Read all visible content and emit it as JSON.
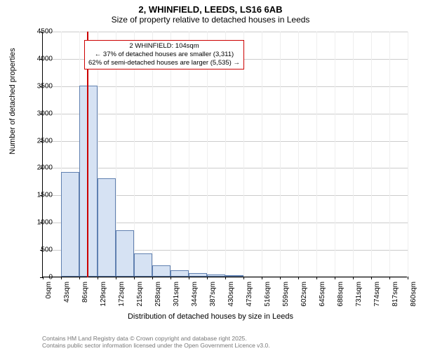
{
  "title": "2, WHINFIELD, LEEDS, LS16 6AB",
  "subtitle": "Size of property relative to detached houses in Leeds",
  "ylabel": "Number of detached properties",
  "xlabel": "Distribution of detached houses by size in Leeds",
  "footer_line1": "Contains HM Land Registry data © Crown copyright and database right 2025.",
  "footer_line2": "Contains public sector information licensed under the Open Government Licence v3.0.",
  "annotation": {
    "line1": "2 WHINFIELD: 104sqm",
    "line2": "← 37% of detached houses are smaller (3,311)",
    "line3": "62% of semi-detached houses are larger (5,535) →"
  },
  "chart": {
    "type": "histogram",
    "ymax": 4500,
    "ytick_step": 500,
    "yticks": [
      0,
      500,
      1000,
      1500,
      2000,
      2500,
      3000,
      3500,
      4000,
      4500
    ],
    "xticks": [
      "0sqm",
      "43sqm",
      "86sqm",
      "129sqm",
      "172sqm",
      "215sqm",
      "258sqm",
      "301sqm",
      "344sqm",
      "387sqm",
      "430sqm",
      "473sqm",
      "516sqm",
      "559sqm",
      "602sqm",
      "645sqm",
      "688sqm",
      "731sqm",
      "774sqm",
      "817sqm",
      "860sqm"
    ],
    "xmax_sqm": 860,
    "reference_line_sqm": 104,
    "bar_color": "#d6e2f3",
    "bar_border": "#6080b0",
    "refline_color": "#cc0000",
    "grid_color": "#cccccc",
    "background_color": "#ffffff",
    "bins": [
      {
        "start": 0,
        "end": 43,
        "count": 5
      },
      {
        "start": 43,
        "end": 86,
        "count": 1920
      },
      {
        "start": 86,
        "end": 129,
        "count": 3500
      },
      {
        "start": 129,
        "end": 172,
        "count": 1800
      },
      {
        "start": 172,
        "end": 215,
        "count": 850
      },
      {
        "start": 215,
        "end": 258,
        "count": 420
      },
      {
        "start": 258,
        "end": 301,
        "count": 200
      },
      {
        "start": 301,
        "end": 344,
        "count": 120
      },
      {
        "start": 344,
        "end": 387,
        "count": 70
      },
      {
        "start": 387,
        "end": 430,
        "count": 40
      },
      {
        "start": 430,
        "end": 473,
        "count": 30
      },
      {
        "start": 473,
        "end": 516,
        "count": 5
      },
      {
        "start": 516,
        "end": 559,
        "count": 5
      },
      {
        "start": 559,
        "end": 602,
        "count": 3
      },
      {
        "start": 602,
        "end": 645,
        "count": 3
      },
      {
        "start": 645,
        "end": 688,
        "count": 2
      },
      {
        "start": 688,
        "end": 731,
        "count": 2
      },
      {
        "start": 731,
        "end": 774,
        "count": 1
      },
      {
        "start": 774,
        "end": 817,
        "count": 1
      },
      {
        "start": 817,
        "end": 860,
        "count": 1
      }
    ]
  }
}
